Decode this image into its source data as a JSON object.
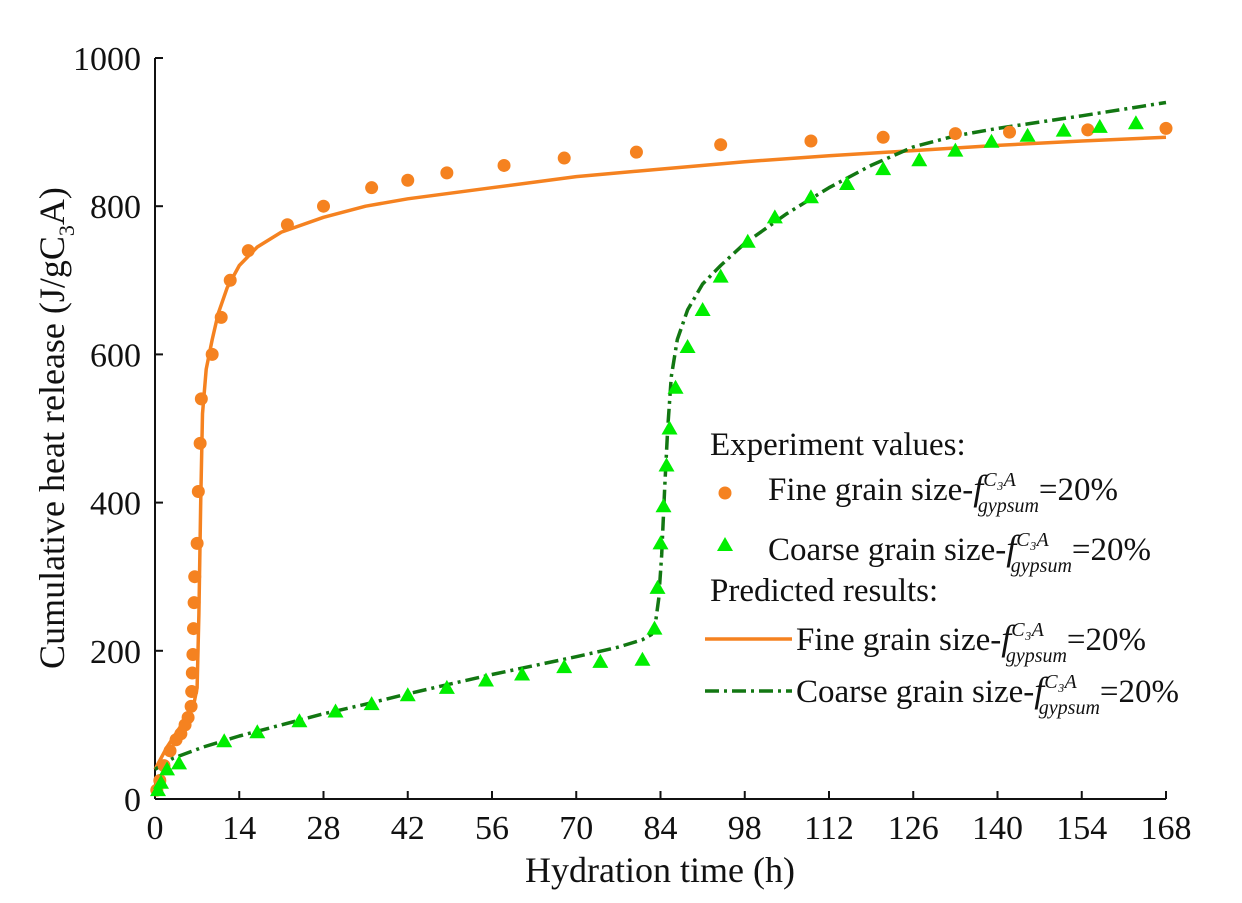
{
  "chart_data": {
    "type": "scatter",
    "xlabel": "Hydration time (h)",
    "ylabel": {
      "main": "Cumulative heat release (J/gC",
      "sub": "3",
      "tail": "A)"
    },
    "xlim": [
      0,
      168
    ],
    "ylim": [
      0,
      1000
    ],
    "x_ticks": [
      0,
      14,
      28,
      42,
      56,
      70,
      84,
      98,
      112,
      126,
      140,
      154,
      168
    ],
    "y_ticks": [
      0,
      200,
      400,
      600,
      800,
      1000
    ],
    "colors": {
      "fine": "#f58220",
      "coarse_marker": "#00ee00",
      "coarse_line": "#127712"
    },
    "legend": {
      "position": "right-middle",
      "experiment_title": "Experiment values:",
      "predicted_title": "Predicted results:",
      "equation_tail": "=20%",
      "f_symbol": "f",
      "f_superscript": "C₃A",
      "f_subscript": "gypsum"
    },
    "series": [
      {
        "name": "Fine grain size",
        "kind": "experiment",
        "marker": "circle",
        "color": "#f58220",
        "points": [
          [
            0.3,
            12
          ],
          [
            0.8,
            25
          ],
          [
            1.5,
            45
          ],
          [
            2.5,
            65
          ],
          [
            3.5,
            80
          ],
          [
            4.3,
            88
          ],
          [
            5,
            100
          ],
          [
            5.5,
            110
          ],
          [
            6,
            125
          ],
          [
            6.1,
            145
          ],
          [
            6.2,
            170
          ],
          [
            6.3,
            195
          ],
          [
            6.4,
            230
          ],
          [
            6.5,
            265
          ],
          [
            6.6,
            300
          ],
          [
            7,
            345
          ],
          [
            7.2,
            415
          ],
          [
            7.5,
            480
          ],
          [
            7.7,
            540
          ],
          [
            9.5,
            600
          ],
          [
            11,
            650
          ],
          [
            12.5,
            700
          ],
          [
            15.5,
            740
          ],
          [
            22,
            775
          ],
          [
            28,
            800
          ],
          [
            36,
            825
          ],
          [
            42,
            835
          ],
          [
            48.5,
            845
          ],
          [
            58,
            855
          ],
          [
            68,
            865
          ],
          [
            80,
            873
          ],
          [
            94,
            883
          ],
          [
            109,
            888
          ],
          [
            121,
            893
          ],
          [
            133,
            898
          ],
          [
            142,
            900
          ],
          [
            155,
            903
          ],
          [
            168,
            905
          ]
        ]
      },
      {
        "name": "Coarse grain size",
        "kind": "experiment",
        "marker": "triangle",
        "color": "#00ee00",
        "points": [
          [
            0.5,
            12
          ],
          [
            1,
            22
          ],
          [
            2,
            40
          ],
          [
            4,
            48
          ],
          [
            11.5,
            78
          ],
          [
            17,
            90
          ],
          [
            24,
            105
          ],
          [
            30,
            118
          ],
          [
            36,
            128
          ],
          [
            42,
            140
          ],
          [
            48.5,
            150
          ],
          [
            55,
            160
          ],
          [
            61,
            168
          ],
          [
            68,
            178
          ],
          [
            74,
            185
          ],
          [
            81,
            188
          ],
          [
            83,
            230
          ],
          [
            83.5,
            285
          ],
          [
            84,
            345
          ],
          [
            84.5,
            395
          ],
          [
            85,
            450
          ],
          [
            85.5,
            500
          ],
          [
            86.5,
            555
          ],
          [
            88.5,
            610
          ],
          [
            91,
            660
          ],
          [
            94,
            705
          ],
          [
            98.5,
            752
          ],
          [
            103,
            785
          ],
          [
            109,
            812
          ],
          [
            115,
            830
          ],
          [
            121,
            850
          ],
          [
            127,
            862
          ],
          [
            133,
            875
          ],
          [
            139,
            887
          ],
          [
            145,
            895
          ],
          [
            151,
            902
          ],
          [
            157,
            907
          ],
          [
            163,
            912
          ]
        ]
      },
      {
        "name": "Fine grain size",
        "kind": "predicted",
        "line_style": "solid",
        "color": "#f58220",
        "points": [
          [
            0,
            40
          ],
          [
            2,
            70
          ],
          [
            4,
            95
          ],
          [
            5.5,
            115
          ],
          [
            6.5,
            130
          ],
          [
            7,
            150
          ],
          [
            7.3,
            250
          ],
          [
            7.6,
            400
          ],
          [
            7.9,
            520
          ],
          [
            8.5,
            580
          ],
          [
            9.5,
            620
          ],
          [
            10.5,
            655
          ],
          [
            12,
            690
          ],
          [
            14,
            720
          ],
          [
            17,
            745
          ],
          [
            21,
            765
          ],
          [
            28,
            785
          ],
          [
            35,
            800
          ],
          [
            42,
            810
          ],
          [
            56,
            825
          ],
          [
            70,
            840
          ],
          [
            84,
            850
          ],
          [
            98,
            860
          ],
          [
            112,
            868
          ],
          [
            126,
            875
          ],
          [
            140,
            882
          ],
          [
            154,
            888
          ],
          [
            168,
            893
          ]
        ]
      },
      {
        "name": "Coarse grain size",
        "kind": "predicted",
        "line_style": "dash-dot",
        "color": "#127712",
        "points": [
          [
            0,
            40
          ],
          [
            3,
            55
          ],
          [
            8,
            70
          ],
          [
            14,
            85
          ],
          [
            21,
            100
          ],
          [
            28,
            115
          ],
          [
            35,
            128
          ],
          [
            42,
            142
          ],
          [
            49,
            155
          ],
          [
            56,
            168
          ],
          [
            63,
            180
          ],
          [
            70,
            192
          ],
          [
            77,
            205
          ],
          [
            81,
            215
          ],
          [
            82.5,
            222
          ],
          [
            83.2,
            240
          ],
          [
            83.7,
            270
          ],
          [
            84.2,
            330
          ],
          [
            84.7,
            420
          ],
          [
            85.2,
            500
          ],
          [
            85.8,
            570
          ],
          [
            86.8,
            620
          ],
          [
            88.5,
            660
          ],
          [
            91,
            695
          ],
          [
            94,
            720
          ],
          [
            98,
            750
          ],
          [
            105,
            790
          ],
          [
            112,
            825
          ],
          [
            119,
            855
          ],
          [
            126,
            880
          ],
          [
            133,
            895
          ],
          [
            140,
            905
          ],
          [
            154,
            922
          ],
          [
            168,
            940
          ]
        ]
      }
    ]
  }
}
